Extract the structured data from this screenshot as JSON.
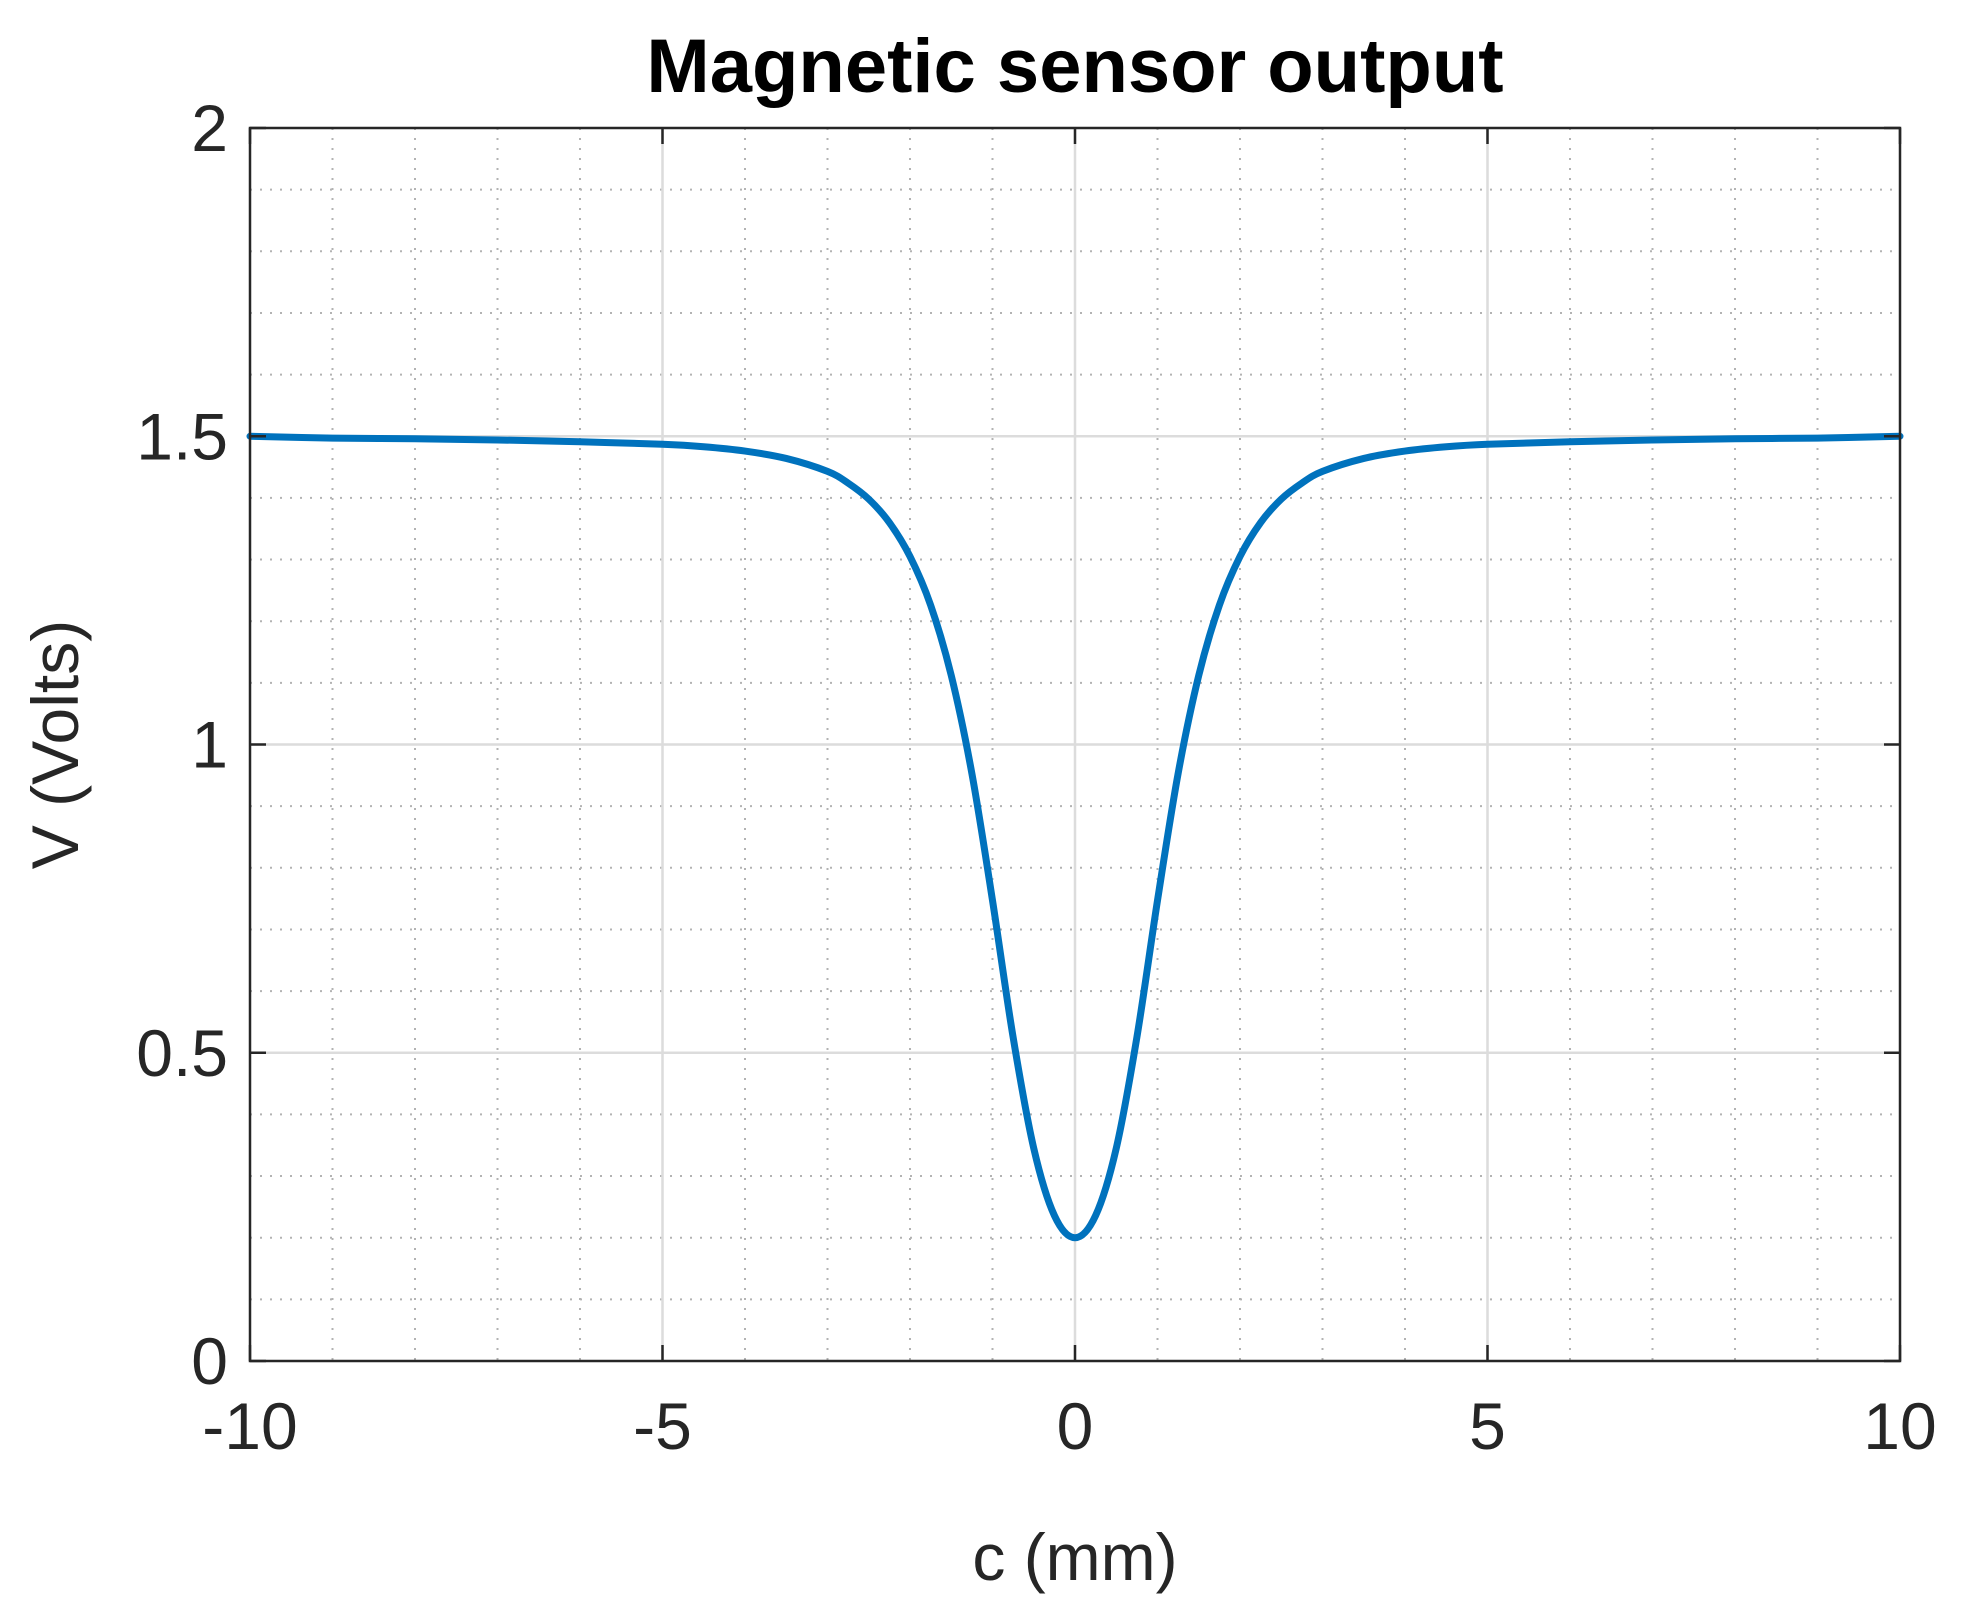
{
  "chart_data": {
    "type": "line",
    "title": "Magnetic sensor output",
    "xlabel": "c (mm)",
    "ylabel": "V (Volts)",
    "xlim": [
      -10,
      10
    ],
    "ylim": [
      0,
      2
    ],
    "xticks": [
      -10,
      -5,
      0,
      5,
      10
    ],
    "yticks": [
      0,
      0.5,
      1,
      1.5,
      2
    ],
    "xtick_labels": [
      "-10",
      "-5",
      "0",
      "5",
      "10"
    ],
    "ytick_labels": [
      "0",
      "0.5",
      "1",
      "1.5",
      "2"
    ],
    "grid": "on",
    "minor_grid": "on",
    "series": [
      {
        "color": "#0072BD",
        "x": [
          -10,
          -9,
          -8,
          -7,
          -6,
          -5,
          -4.5,
          -4,
          -3.5,
          -3,
          -2.75,
          -2.5,
          -2.25,
          -2,
          -1.75,
          -1.5,
          -1.25,
          -1,
          -0.75,
          -0.5,
          -0.25,
          0,
          0.25,
          0.5,
          0.75,
          1,
          1.25,
          1.5,
          1.75,
          2,
          2.25,
          2.5,
          2.75,
          3,
          3.5,
          4,
          4.5,
          5,
          6,
          7,
          8,
          9,
          10
        ],
        "y": [
          1.5,
          1.497,
          1.496,
          1.494,
          1.491,
          1.487,
          1.483,
          1.476,
          1.464,
          1.443,
          1.424,
          1.398,
          1.36,
          1.305,
          1.226,
          1.112,
          0.953,
          0.747,
          0.525,
          0.345,
          0.236,
          0.2,
          0.236,
          0.345,
          0.525,
          0.747,
          0.953,
          1.112,
          1.226,
          1.305,
          1.36,
          1.398,
          1.424,
          1.443,
          1.464,
          1.476,
          1.483,
          1.487,
          1.491,
          1.494,
          1.496,
          1.497,
          1.5
        ]
      }
    ]
  }
}
